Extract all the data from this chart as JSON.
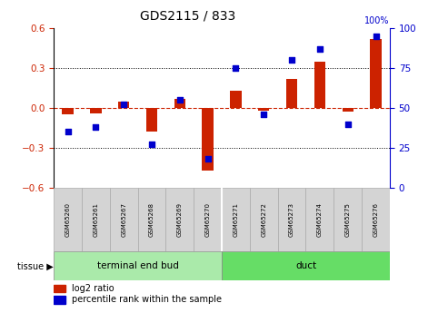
{
  "title": "GDS2115 / 833",
  "samples": [
    "GSM65260",
    "GSM65261",
    "GSM65267",
    "GSM65268",
    "GSM65269",
    "GSM65270",
    "GSM65271",
    "GSM65272",
    "GSM65273",
    "GSM65274",
    "GSM65275",
    "GSM65276"
  ],
  "log2_ratio": [
    -0.05,
    -0.04,
    0.05,
    -0.18,
    0.07,
    -0.47,
    0.13,
    -0.02,
    0.22,
    0.35,
    -0.03,
    0.52
  ],
  "percentile_rank": [
    35,
    38,
    52,
    27,
    55,
    18,
    75,
    46,
    80,
    87,
    40,
    95
  ],
  "tissue_groups": [
    {
      "label": "terminal end bud",
      "start": 0,
      "end": 6,
      "color": "#aaeaaa"
    },
    {
      "label": "duct",
      "start": 6,
      "end": 12,
      "color": "#66dd66"
    }
  ],
  "bar_color_red": "#cc2200",
  "bar_color_blue": "#0000cc",
  "ylim_left": [
    -0.6,
    0.6
  ],
  "ylim_right": [
    0,
    100
  ],
  "yticks_left": [
    -0.6,
    -0.3,
    0.0,
    0.3,
    0.6
  ],
  "yticks_right": [
    0,
    25,
    50,
    75,
    100
  ],
  "dotted_lines": [
    -0.3,
    0.3
  ],
  "zero_line_color": "#cc2200",
  "sample_box_color": "#d4d4d4",
  "legend_log2_label": "log2 ratio",
  "legend_pct_label": "percentile rank within the sample",
  "tissue_label": "tissue",
  "bar_width": 0.4
}
